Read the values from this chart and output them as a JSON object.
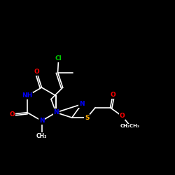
{
  "bg_color": "#000000",
  "atom_colors": {
    "N": "#0000ff",
    "O": "#ff0000",
    "S": "#ffaa00",
    "Cl": "#00cc00",
    "C": "#ffffff"
  },
  "bond_color": "#ffffff",
  "bond_width": 1.2,
  "figsize": [
    2.5,
    2.5
  ],
  "dpi": 100,
  "font_size": 6.5,
  "font_size_small": 5.5,
  "xlim": [
    -1.0,
    9.5
  ],
  "ylim": [
    -3.5,
    5.5
  ]
}
